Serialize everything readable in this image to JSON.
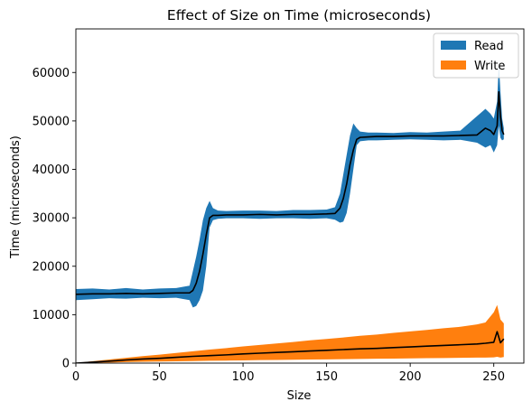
{
  "chart_data": {
    "type": "area",
    "title": "Effect of Size on Time (microseconds)",
    "xlabel": "Size",
    "ylabel": "Time (microseconds)",
    "xlim": [
      0,
      268
    ],
    "ylim": [
      0,
      69000
    ],
    "xticks": [
      0,
      50,
      100,
      150,
      200,
      250
    ],
    "yticks": [
      0,
      10000,
      20000,
      30000,
      40000,
      50000,
      60000
    ],
    "grid": false,
    "legend_position": "top-right",
    "series": [
      {
        "name": "Read",
        "color": "#1f77b4",
        "line_color": "#000000",
        "x": [
          0,
          10,
          20,
          30,
          40,
          50,
          60,
          68,
          70,
          72,
          74,
          76,
          78,
          80,
          82,
          85,
          90,
          100,
          110,
          120,
          130,
          140,
          150,
          155,
          158,
          160,
          162,
          164,
          166,
          168,
          170,
          175,
          180,
          190,
          200,
          210,
          220,
          230,
          240,
          245,
          248,
          250,
          252,
          253,
          254,
          255,
          256
        ],
        "mean": [
          14200,
          14300,
          14300,
          14400,
          14300,
          14400,
          14500,
          14500,
          15000,
          16500,
          19000,
          22500,
          26500,
          30000,
          30500,
          30500,
          30600,
          30600,
          30700,
          30600,
          30700,
          30700,
          30800,
          30900,
          32000,
          34000,
          37000,
          41000,
          44000,
          46200,
          46600,
          46700,
          46800,
          46800,
          46900,
          46900,
          46900,
          47000,
          47100,
          48500,
          48000,
          47200,
          49000,
          56000,
          51000,
          48000,
          47200
        ],
        "lower": [
          13000,
          13200,
          13400,
          13300,
          13500,
          13400,
          13500,
          13000,
          11500,
          11800,
          13000,
          15000,
          20000,
          28000,
          29500,
          29800,
          29900,
          29900,
          29800,
          29900,
          29900,
          29800,
          29900,
          29600,
          29000,
          29200,
          31000,
          35000,
          40000,
          45000,
          45800,
          46000,
          46000,
          46100,
          46200,
          46100,
          46000,
          46100,
          45500,
          44500,
          45000,
          43500,
          45000,
          49000,
          46500,
          46000,
          46200
        ],
        "upper": [
          15300,
          15400,
          15200,
          15500,
          15200,
          15400,
          15500,
          16000,
          19000,
          22000,
          25500,
          29500,
          32000,
          33500,
          32000,
          31500,
          31400,
          31500,
          31500,
          31400,
          31600,
          31600,
          31700,
          32200,
          35000,
          39000,
          43000,
          47000,
          49500,
          48500,
          47800,
          47600,
          47600,
          47500,
          47700,
          47600,
          47800,
          48000,
          51000,
          52500,
          51500,
          50500,
          54000,
          62000,
          56000,
          50500,
          48500
        ]
      },
      {
        "name": "Write",
        "color": "#ff7f0e",
        "line_color": "#000000",
        "x": [
          0,
          10,
          20,
          30,
          40,
          50,
          60,
          70,
          80,
          90,
          100,
          110,
          120,
          130,
          140,
          150,
          160,
          170,
          180,
          190,
          200,
          210,
          220,
          230,
          240,
          245,
          250,
          252,
          254,
          256
        ],
        "mean": [
          0,
          200,
          400,
          650,
          850,
          1000,
          1200,
          1400,
          1550,
          1700,
          1900,
          2050,
          2200,
          2350,
          2500,
          2650,
          2800,
          2950,
          3050,
          3200,
          3350,
          3500,
          3650,
          3800,
          3950,
          4100,
          4300,
          6500,
          4200,
          5000
        ],
        "lower": [
          0,
          60,
          120,
          200,
          280,
          330,
          380,
          430,
          480,
          520,
          570,
          620,
          660,
          700,
          740,
          780,
          820,
          860,
          900,
          940,
          980,
          1020,
          1060,
          1100,
          1150,
          1150,
          1200,
          1300,
          1150,
          1250
        ],
        "upper": [
          0,
          400,
          750,
          1100,
          1450,
          1750,
          2100,
          2450,
          2800,
          3100,
          3450,
          3750,
          4050,
          4350,
          4700,
          5000,
          5300,
          5650,
          5900,
          6250,
          6550,
          6850,
          7200,
          7500,
          8000,
          8400,
          10500,
          12000,
          9000,
          8200
        ]
      }
    ]
  }
}
